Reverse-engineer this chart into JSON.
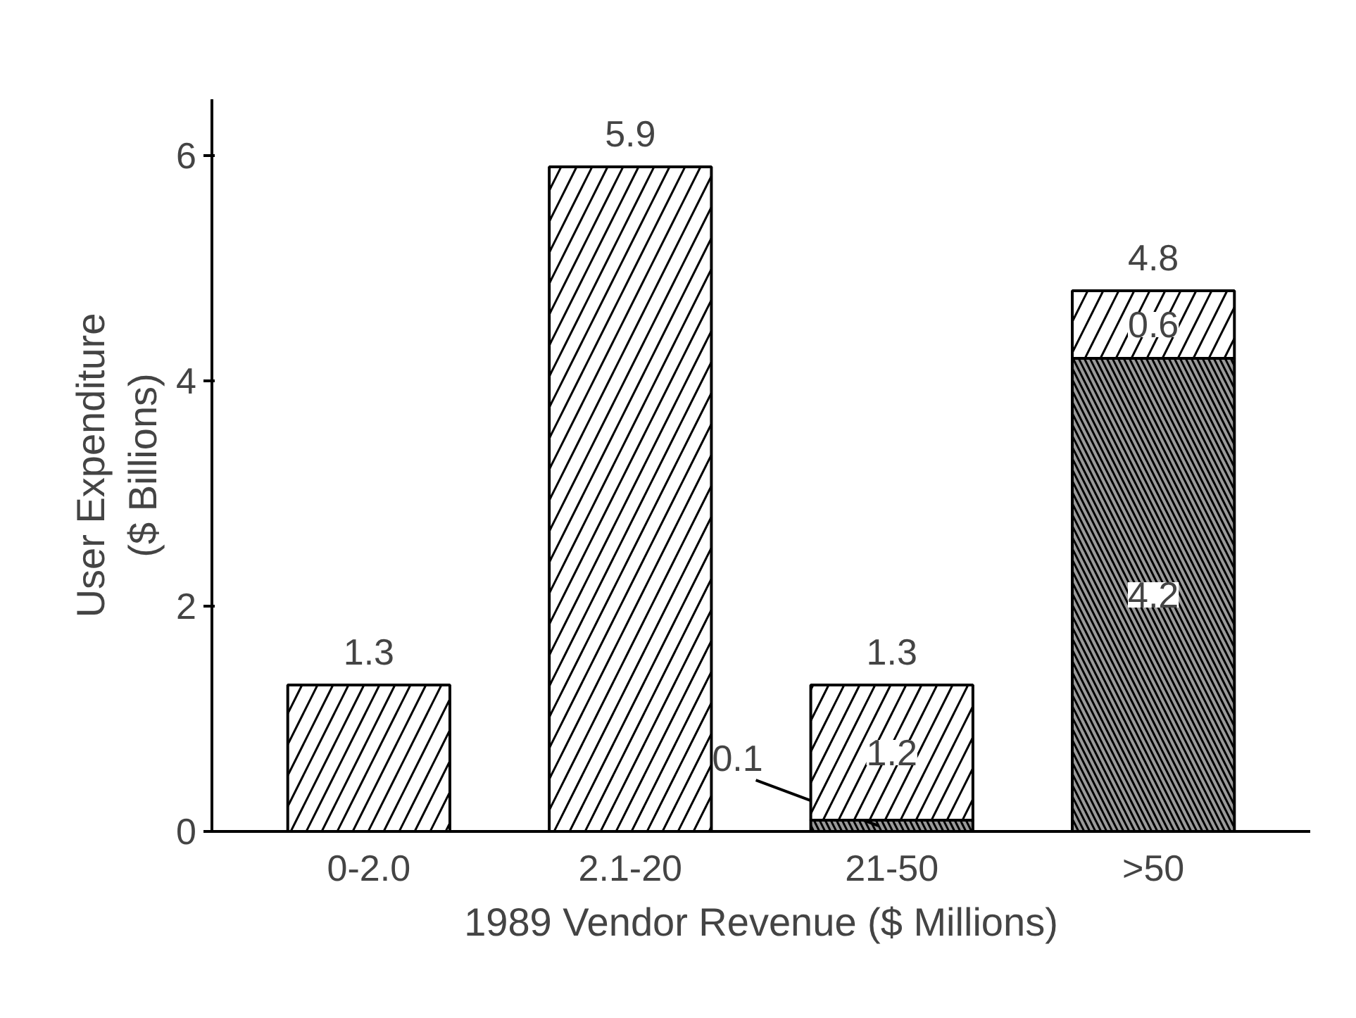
{
  "chart_data": {
    "type": "bar",
    "stacked": true,
    "xlabel": "1989 Vendor Revenue ($ Millions)",
    "ylabel": "User Expenditure\n($ Billions)",
    "categories": [
      "0-2.0",
      "2.1-20",
      "21-50",
      ">50"
    ],
    "series": [
      {
        "color": "#9a9a9a",
        "values": [
          null,
          null,
          0.1,
          4.2
        ],
        "value_labels": [
          null,
          null,
          "0.1",
          "4.2"
        ]
      },
      {
        "color": "#ffffff",
        "values": [
          1.3,
          5.9,
          1.2,
          0.6
        ],
        "value_labels": [
          null,
          null,
          "1.2",
          "0.6"
        ]
      }
    ],
    "totals": [
      "1.3",
      "5.9",
      "1.3",
      "4.8"
    ],
    "ylim": [
      0,
      6.5
    ],
    "yticks": [
      0,
      2,
      4,
      6
    ],
    "grid": false
  }
}
